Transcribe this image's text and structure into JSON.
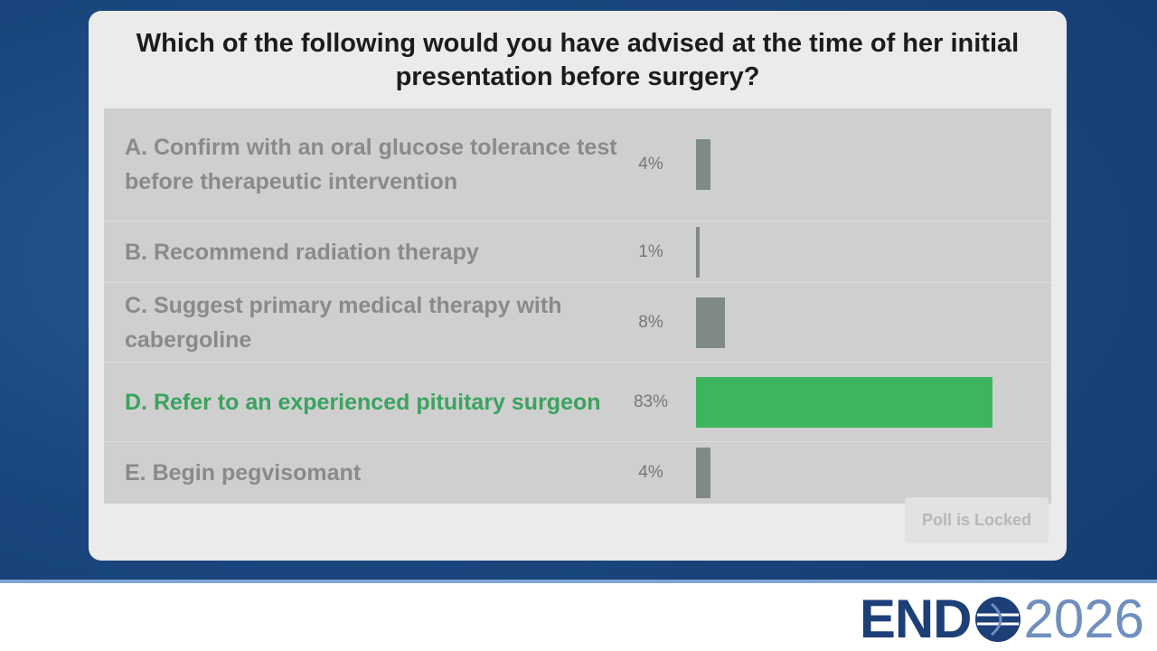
{
  "poll": {
    "question": "Which of the following would you have advised at the time of her initial presentation before surgery?",
    "options": [
      {
        "label": "A. Confirm with an oral glucose tolerance test before therapeutic intervention",
        "value": 4,
        "value_label": "4%"
      },
      {
        "label": "B. Recommend radiation therapy",
        "value": 1,
        "value_label": "1%"
      },
      {
        "label": "C. Suggest primary medical therapy with cabergoline",
        "value": 8,
        "value_label": "8%"
      },
      {
        "label": "D. Refer to an experienced pituitary surgeon",
        "value": 83,
        "value_label": "83%",
        "highlight": true
      },
      {
        "label": "E. Begin pegvisomant",
        "value": 4,
        "value_label": "4%"
      }
    ],
    "status": "Poll is Locked"
  },
  "logo": {
    "left": "END",
    "right": "2026"
  }
}
